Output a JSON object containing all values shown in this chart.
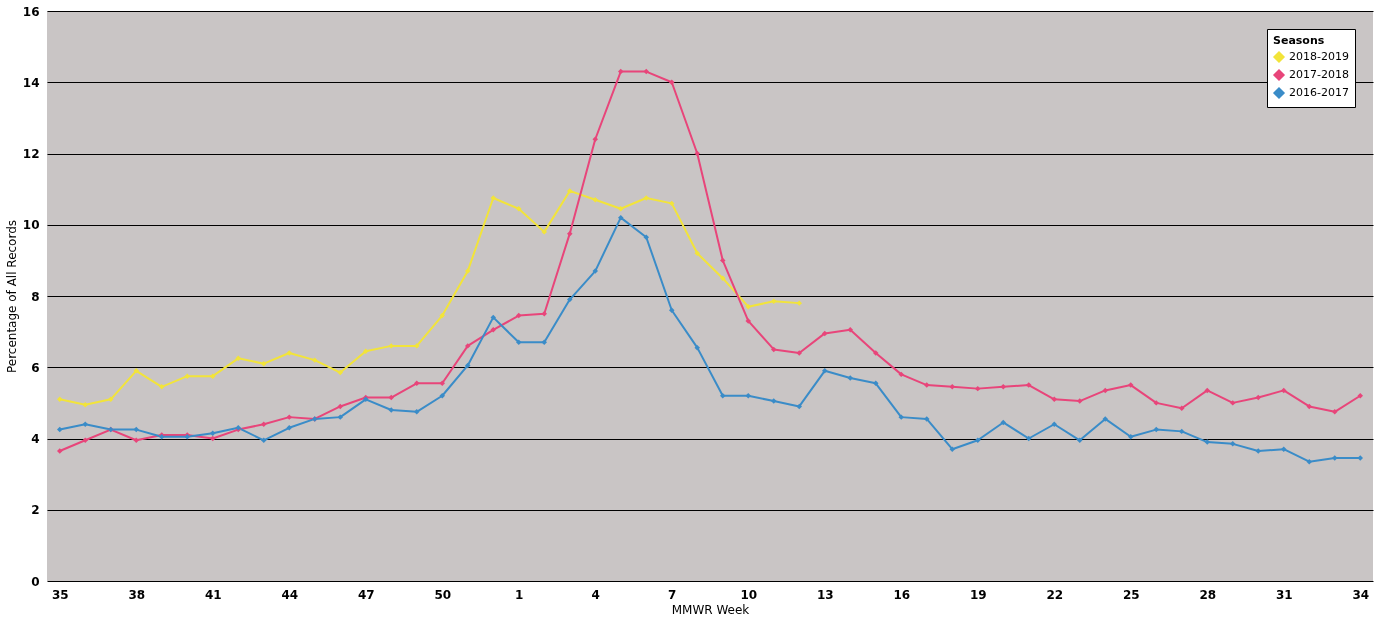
{
  "chart_data": {
    "type": "line",
    "xlabel": "MMWR Week",
    "ylabel": "Percentage of All Records",
    "legend_title": "Seasons",
    "categories": [
      "35",
      null,
      null,
      "38",
      null,
      null,
      "41",
      null,
      null,
      "44",
      null,
      null,
      "47",
      null,
      null,
      "50",
      null,
      null,
      "1",
      null,
      null,
      "4",
      null,
      null,
      "7",
      null,
      null,
      "10",
      null,
      null,
      "13",
      null,
      null,
      "16",
      null,
      null,
      "19",
      null,
      null,
      "22",
      null,
      null,
      "25",
      null,
      null,
      "28",
      null,
      null,
      "31",
      null,
      null,
      "34"
    ],
    "series": [
      {
        "name": "2018-2019",
        "color": "#f2e43a",
        "values": [
          5.1,
          4.95,
          5.1,
          5.9,
          5.45,
          5.75,
          5.75,
          6.25,
          6.1,
          6.4,
          6.2,
          5.85,
          6.45,
          6.6,
          6.6,
          7.45,
          8.7,
          10.75,
          10.45,
          9.8,
          10.95,
          10.7,
          10.45,
          10.75,
          10.6,
          9.2,
          8.5,
          7.7,
          7.85,
          7.8,
          null,
          null,
          null,
          null,
          null,
          null,
          null,
          null,
          null,
          null,
          null,
          null,
          null,
          null,
          null,
          null,
          null,
          null,
          null,
          null,
          null,
          null
        ]
      },
      {
        "name": "2017-2018",
        "color": "#e8457a",
        "values": [
          3.65,
          3.95,
          4.25,
          3.95,
          4.1,
          4.1,
          4.0,
          4.25,
          4.4,
          4.6,
          4.55,
          4.9,
          5.15,
          5.15,
          5.55,
          5.55,
          6.6,
          7.05,
          7.45,
          7.5,
          9.75,
          12.4,
          14.3,
          14.3,
          14.0,
          12.0,
          9.0,
          7.3,
          6.5,
          6.4,
          6.95,
          7.05,
          6.4,
          5.8,
          5.5,
          5.45,
          5.4,
          5.45,
          5.5,
          5.1,
          5.05,
          5.35,
          5.5,
          5.0,
          4.85,
          5.35,
          5.0,
          5.15,
          5.35,
          4.9,
          4.75,
          5.2
        ]
      },
      {
        "name": "2016-2017",
        "color": "#3a8cc8",
        "values": [
          4.25,
          4.4,
          4.25,
          4.25,
          4.05,
          4.05,
          4.15,
          4.3,
          3.95,
          4.3,
          4.55,
          4.6,
          5.1,
          4.8,
          4.75,
          5.2,
          6.05,
          7.4,
          6.7,
          6.7,
          7.9,
          8.7,
          10.2,
          9.65,
          7.6,
          6.55,
          5.2,
          5.2,
          5.05,
          4.9,
          5.9,
          5.7,
          5.55,
          4.6,
          4.55,
          3.7,
          3.95,
          4.45,
          4.0,
          4.4,
          3.95,
          4.55,
          4.05,
          4.25,
          4.2,
          3.9,
          3.85,
          3.65,
          3.7,
          3.35,
          3.45,
          3.45
        ]
      }
    ],
    "ylim": [
      0,
      16
    ],
    "yticks": [
      0,
      2,
      4,
      6,
      8,
      10,
      12,
      14,
      16
    ],
    "grid": "y",
    "legend": "top right",
    "marker": "diamond",
    "line_style": "solid"
  }
}
